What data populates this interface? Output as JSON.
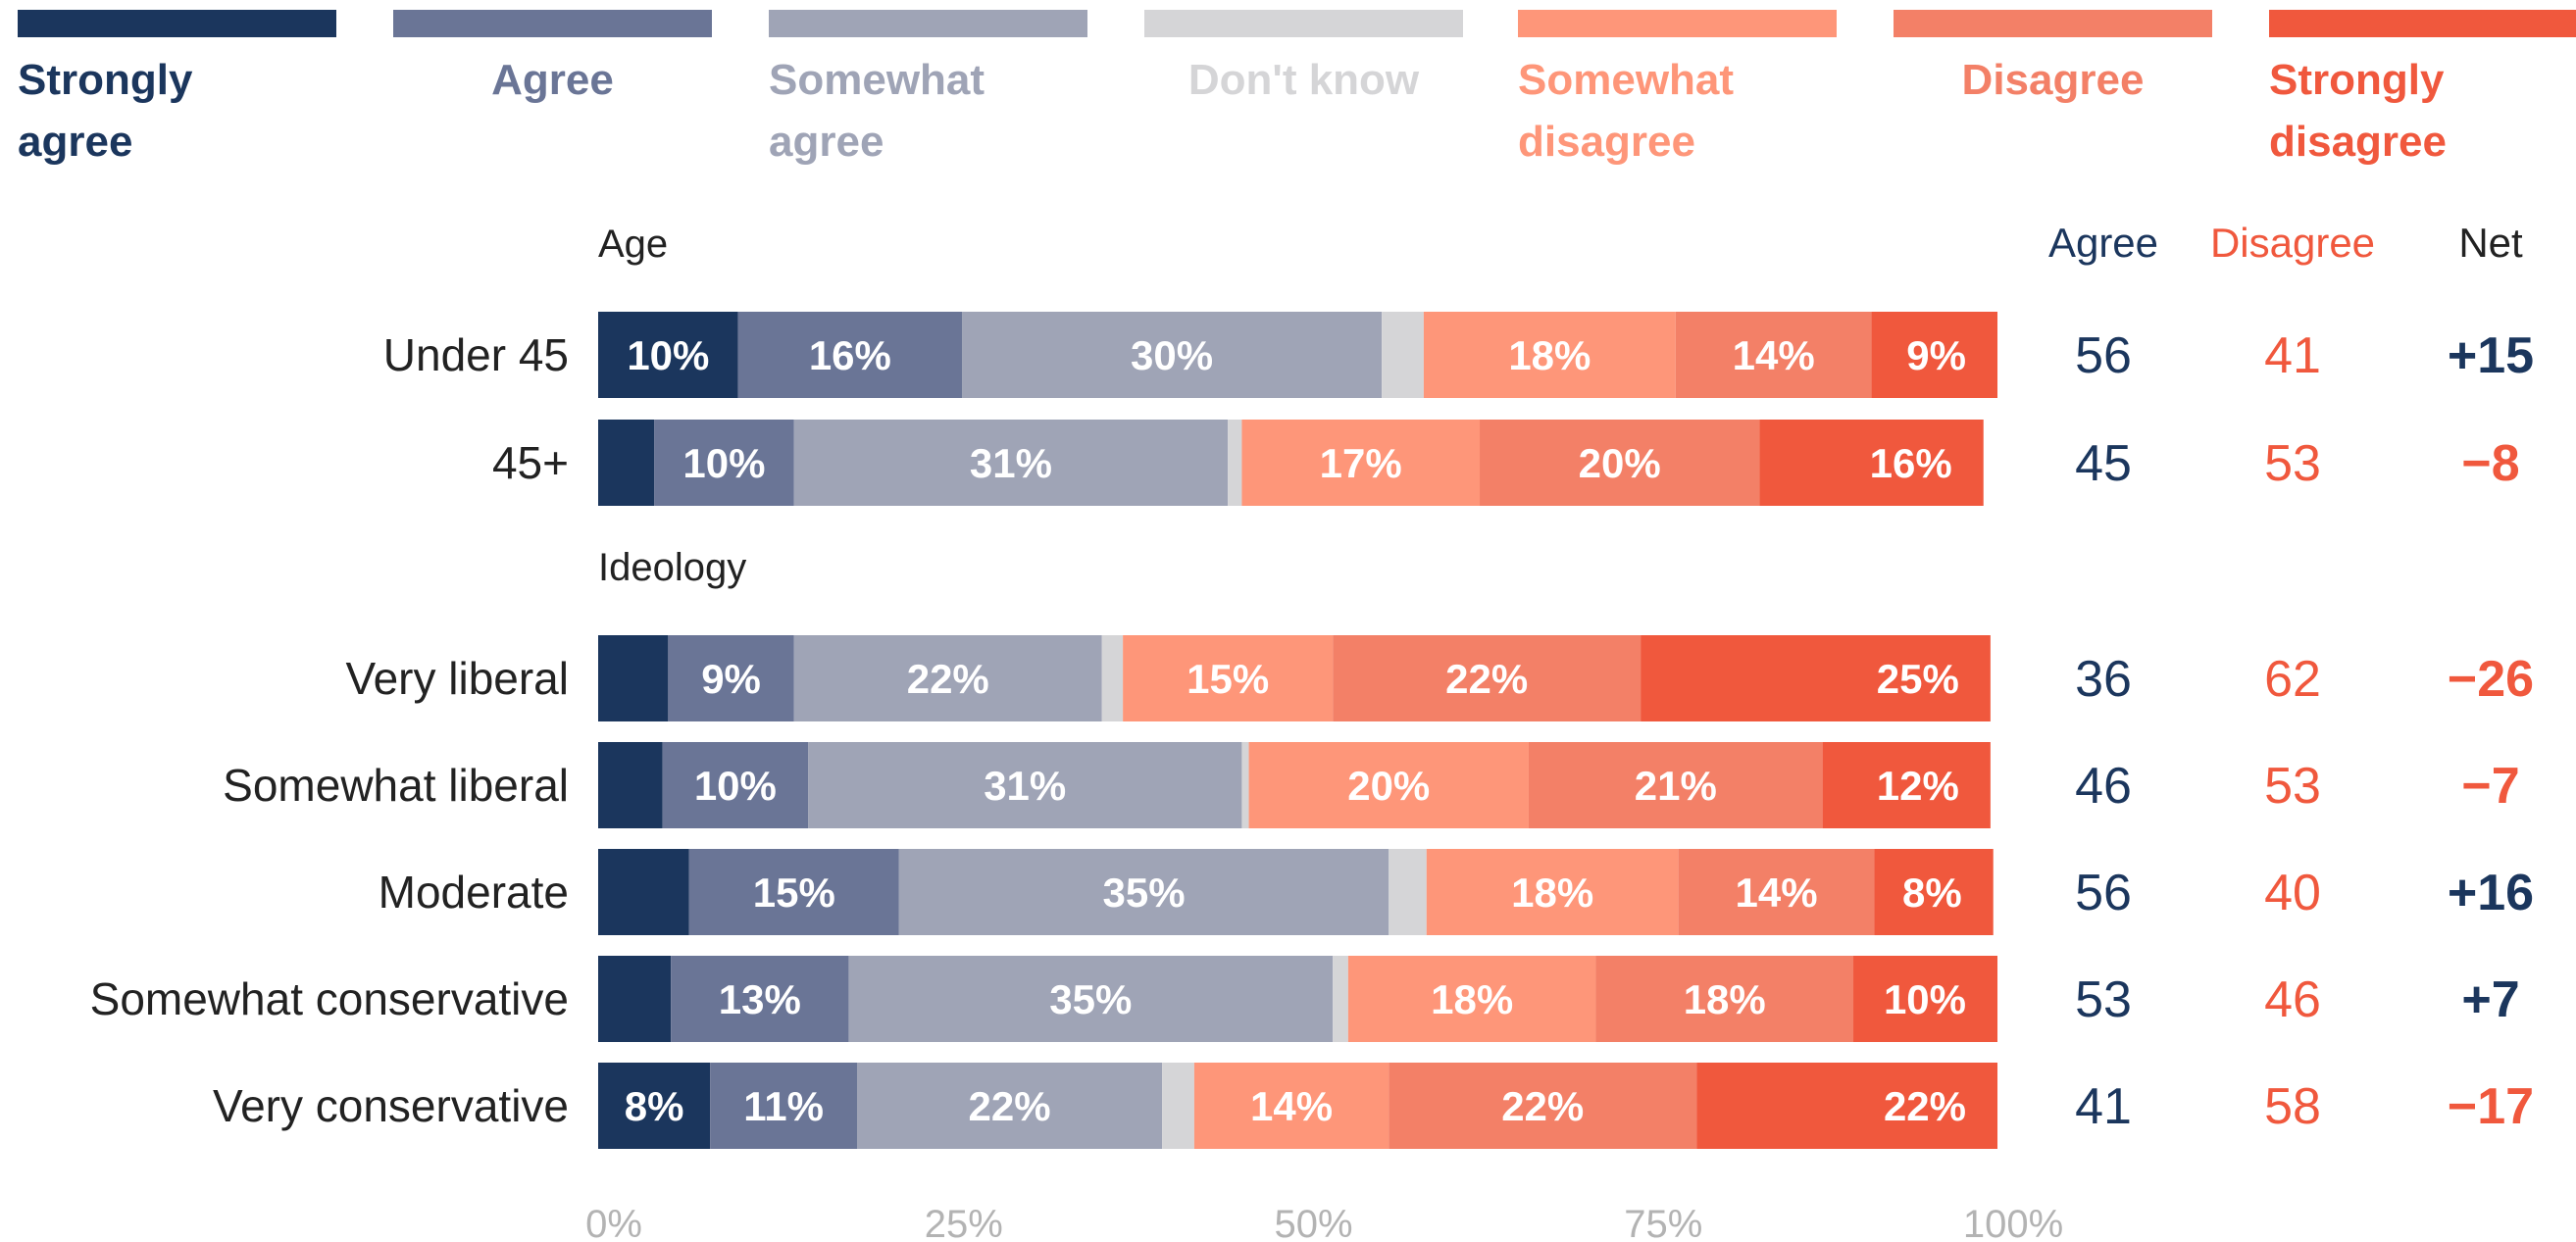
{
  "chart_data": {
    "type": "bar",
    "orientation": "horizontal",
    "stacked": true,
    "xlim": [
      0,
      100
    ],
    "x_ticks": [
      "0%",
      "25%",
      "50%",
      "75%",
      "100%"
    ],
    "legend_position": "top",
    "grid": false,
    "series": [
      {
        "name": "Strongly\nagree",
        "color": "#1b365d"
      },
      {
        "name": "Agree",
        "color": "#6a7596"
      },
      {
        "name": "Somewhat\nagree",
        "color": "#9fa4b6"
      },
      {
        "name": "Don't know",
        "color": "#d5d5d7"
      },
      {
        "name": "Somewhat\ndisagree",
        "color": "#fe9679"
      },
      {
        "name": "Disagree",
        "color": "#f38067"
      },
      {
        "name": "Strongly\ndisagree",
        "color": "#f0583d"
      }
    ],
    "summary_headers": {
      "agree": "Agree",
      "disagree": "Disagree",
      "net": "Net"
    },
    "summary_colors": {
      "agree": "#1b365d",
      "disagree": "#f0583d",
      "net_positive": "#1b365d",
      "net_negative": "#f0583d"
    },
    "groups": [
      {
        "title": "Age",
        "rows": [
          {
            "label": "Under 45",
            "values": [
              10,
              16,
              30,
              3,
              18,
              14,
              9
            ],
            "value_labels": [
              "10%",
              "16%",
              "30%",
              "",
              "18%",
              "14%",
              "9%"
            ],
            "agree": "56",
            "disagree": "41",
            "net": "+15"
          },
          {
            "label": "45+",
            "values": [
              4,
              10,
              31,
              1,
              17,
              20,
              16
            ],
            "value_labels": [
              "",
              "10%",
              "31%",
              "",
              "17%",
              "20%",
              "16%"
            ],
            "agree": "45",
            "disagree": "53",
            "net": "−8"
          }
        ]
      },
      {
        "title": "Ideology",
        "rows": [
          {
            "label": "Very liberal",
            "values": [
              5,
              9,
              22,
              1.5,
              15,
              22,
              25
            ],
            "value_labels": [
              "",
              "9%",
              "22%",
              "",
              "15%",
              "22%",
              "25%"
            ],
            "agree": "36",
            "disagree": "62",
            "net": "−26"
          },
          {
            "label": "Somewhat liberal",
            "values": [
              4.6,
              10.4,
              31,
              0.5,
              20,
              21,
              12
            ],
            "value_labels": [
              "",
              "10%",
              "31%",
              "",
              "20%",
              "21%",
              "12%"
            ],
            "agree": "46",
            "disagree": "53",
            "net": "−7"
          },
          {
            "label": "Moderate",
            "values": [
              6.5,
              15,
              35,
              2.7,
              18,
              14,
              8.5
            ],
            "value_labels": [
              "",
              "15%",
              "35%",
              "",
              "18%",
              "14%",
              "8%"
            ],
            "agree": "56",
            "disagree": "40",
            "net": "+16"
          },
          {
            "label": "Somewhat conservative",
            "values": [
              5.2,
              12.7,
              34.6,
              1.1,
              17.7,
              18.4,
              10.3
            ],
            "value_labels": [
              "",
              "13%",
              "35%",
              "",
              "18%",
              "18%",
              "10%"
            ],
            "agree": "53",
            "disagree": "46",
            "net": "+7"
          },
          {
            "label": "Very conservative",
            "values": [
              8,
              10.5,
              21.8,
              2.3,
              13.9,
              22,
              21.5
            ],
            "value_labels": [
              "8%",
              "11%",
              "22%",
              "",
              "14%",
              "22%",
              "22%"
            ],
            "agree": "41",
            "disagree": "58",
            "net": "−17"
          }
        ]
      }
    ]
  }
}
